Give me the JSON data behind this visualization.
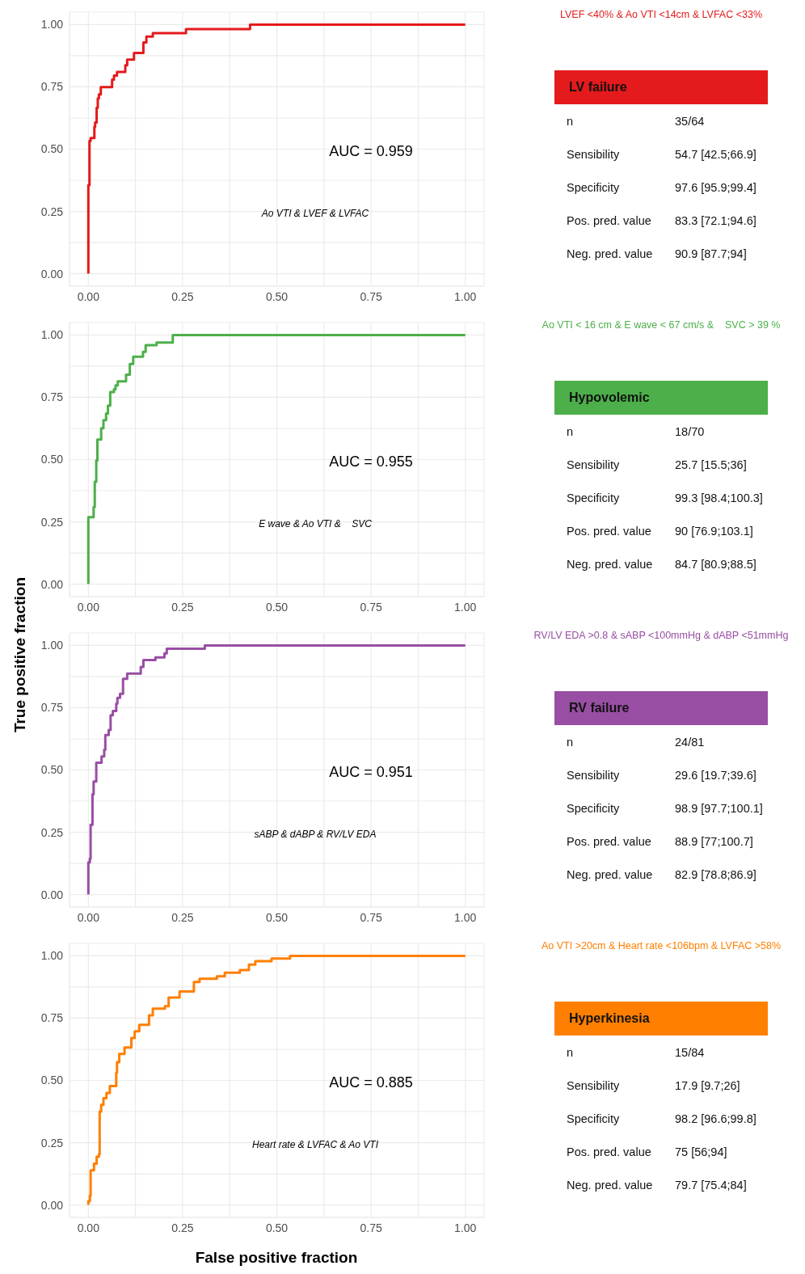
{
  "chart_data": [
    {
      "type": "step",
      "xlim": [
        -0.05,
        1.05
      ],
      "ylim": [
        -0.05,
        1.05
      ],
      "grid": true,
      "xticks": [
        {
          "value": 0,
          "label": "0.00"
        },
        {
          "value": 0.125,
          "label": null
        },
        {
          "value": 0.25,
          "label": "0.25"
        },
        {
          "value": 0.375,
          "label": null
        },
        {
          "value": 0.5,
          "label": "0.50"
        },
        {
          "value": 0.625,
          "label": null
        },
        {
          "value": 0.75,
          "label": "0.75"
        },
        {
          "value": 0.875,
          "label": null
        },
        {
          "value": 1,
          "label": "1.00"
        }
      ],
      "yticks": [
        {
          "value": 0,
          "label": "0.00"
        },
        {
          "value": 0.125,
          "label": null
        },
        {
          "value": 0.25,
          "label": "0.25"
        },
        {
          "value": 0.375,
          "label": null
        },
        {
          "value": 0.5,
          "label": "0.50"
        },
        {
          "value": 0.625,
          "label": null
        },
        {
          "value": 0.75,
          "label": "0.75"
        },
        {
          "value": 0.875,
          "label": null
        },
        {
          "value": 1,
          "label": "1.00"
        }
      ],
      "annotations": [
        "AUC = 0.959",
        "Ao VTI & LVEF & LVFAC"
      ],
      "x": [
        0,
        0,
        0.003,
        0.006,
        0.016,
        0.018,
        0.022,
        0.025,
        0.028,
        0.033,
        0.063,
        0.068,
        0.076,
        0.098,
        0.103,
        0.121,
        0.146,
        0.154,
        0.171,
        0.259,
        0.429,
        1
      ],
      "series": [
        {
          "color": "#e41a1c",
          "values": [
            0,
            0.356,
            0.533,
            0.545,
            0.59,
            0.607,
            0.666,
            0.704,
            0.72,
            0.749,
            0.779,
            0.795,
            0.81,
            0.837,
            0.859,
            0.886,
            0.928,
            0.952,
            0.966,
            0.982,
            1,
            1
          ]
        }
      ]
    },
    {
      "type": "other",
      "title": "LV failure",
      "subtitle": "LVEF <40% & Ao VTI <14cm & LVFAC <33%",
      "color": "#e41a1c",
      "annotations": [
        "n",
        "35/64",
        "Sensibility",
        "54.7 [42.5;66.9]",
        "Specificity",
        "97.6 [95.9;99.4]",
        "Pos. pred. value",
        "83.3 [72.1;94.6]",
        "Neg. pred. value",
        "90.9 [87.7;94]"
      ]
    },
    {
      "type": "step",
      "xlim": [
        -0.05,
        1.05
      ],
      "ylim": [
        -0.05,
        1.05
      ],
      "grid": true,
      "xticks": [
        {
          "value": 0,
          "label": "0.00"
        },
        {
          "value": 0.125,
          "label": null
        },
        {
          "value": 0.25,
          "label": "0.25"
        },
        {
          "value": 0.375,
          "label": null
        },
        {
          "value": 0.5,
          "label": "0.50"
        },
        {
          "value": 0.625,
          "label": null
        },
        {
          "value": 0.75,
          "label": "0.75"
        },
        {
          "value": 0.875,
          "label": null
        },
        {
          "value": 1,
          "label": "1.00"
        }
      ],
      "yticks": [
        {
          "value": 0,
          "label": "0.00"
        },
        {
          "value": 0.125,
          "label": null
        },
        {
          "value": 0.25,
          "label": "0.25"
        },
        {
          "value": 0.375,
          "label": null
        },
        {
          "value": 0.5,
          "label": "0.50"
        },
        {
          "value": 0.625,
          "label": null
        },
        {
          "value": 0.75,
          "label": "0.75"
        },
        {
          "value": 0.875,
          "label": null
        },
        {
          "value": 1,
          "label": "1.00"
        }
      ],
      "annotations": [
        "AUC = 0.955",
        "E wave & Ao VTI &    SVC"
      ],
      "x": [
        0,
        0,
        0.014,
        0.017,
        0.021,
        0.024,
        0.034,
        0.04,
        0.047,
        0.052,
        0.058,
        0.068,
        0.072,
        0.078,
        0.1,
        0.11,
        0.119,
        0.145,
        0.152,
        0.181,
        0.224,
        1
      ],
      "series": [
        {
          "color": "#4daf4a",
          "values": [
            0,
            0.269,
            0.309,
            0.411,
            0.497,
            0.58,
            0.626,
            0.658,
            0.685,
            0.717,
            0.771,
            0.782,
            0.798,
            0.814,
            0.841,
            0.884,
            0.913,
            0.932,
            0.959,
            0.97,
            1,
            1
          ]
        }
      ]
    },
    {
      "type": "other",
      "title": "Hypovolemic",
      "subtitle": "Ao VTI < 16 cm & E wave < 67 cm/s &    SVC > 39 %",
      "color": "#4daf4a",
      "annotations": [
        "n",
        "18/70",
        "Sensibility",
        "25.7 [15.5;36]",
        "Specificity",
        "99.3 [98.4;100.3]",
        "Pos. pred. value",
        "90 [76.9;103.1]",
        "Neg. pred. value",
        "84.7 [80.9;88.5]"
      ]
    },
    {
      "type": "step",
      "xlim": [
        -0.05,
        1.05
      ],
      "ylim": [
        -0.05,
        1.05
      ],
      "grid": true,
      "xticks": [
        {
          "value": 0,
          "label": "0.00"
        },
        {
          "value": 0.125,
          "label": null
        },
        {
          "value": 0.25,
          "label": "0.25"
        },
        {
          "value": 0.375,
          "label": null
        },
        {
          "value": 0.5,
          "label": "0.50"
        },
        {
          "value": 0.625,
          "label": null
        },
        {
          "value": 0.75,
          "label": "0.75"
        },
        {
          "value": 0.875,
          "label": null
        },
        {
          "value": 1,
          "label": "1.00"
        }
      ],
      "yticks": [
        {
          "value": 0,
          "label": "0.00"
        },
        {
          "value": 0.125,
          "label": null
        },
        {
          "value": 0.25,
          "label": "0.25"
        },
        {
          "value": 0.375,
          "label": null
        },
        {
          "value": 0.5,
          "label": "0.50"
        },
        {
          "value": 0.625,
          "label": null
        },
        {
          "value": 0.75,
          "label": "0.75"
        },
        {
          "value": 0.875,
          "label": null
        },
        {
          "value": 1,
          "label": "1.00"
        }
      ],
      "ylabel": "True positive fraction",
      "annotations": [
        "AUC = 0.951",
        "sABP & dABP & RV/LV EDA"
      ],
      "x": [
        0,
        0,
        0.004,
        0.006,
        0.011,
        0.014,
        0.021,
        0.035,
        0.042,
        0.045,
        0.054,
        0.059,
        0.065,
        0.074,
        0.077,
        0.084,
        0.092,
        0.103,
        0.139,
        0.146,
        0.178,
        0.202,
        0.208,
        0.309,
        1
      ],
      "series": [
        {
          "color": "#984ea3",
          "values": [
            0,
            0.129,
            0.145,
            0.28,
            0.403,
            0.454,
            0.529,
            0.554,
            0.581,
            0.64,
            0.661,
            0.72,
            0.737,
            0.766,
            0.79,
            0.806,
            0.866,
            0.887,
            0.914,
            0.941,
            0.952,
            0.968,
            0.987,
            1,
            1
          ]
        }
      ]
    },
    {
      "type": "other",
      "title": "RV failure",
      "subtitle": "RV/LV EDA >0.8 & sABP <100mmHg & dABP <51mmHg",
      "color": "#984ea3",
      "annotations": [
        "n",
        "24/81",
        "Sensibility",
        "29.6 [19.7;39.6]",
        "Specificity",
        "98.9 [97.7;100.1]",
        "Pos. pred. value",
        "88.9 [77;100.7]",
        "Neg. pred. value",
        "82.9 [78.8;86.9]"
      ]
    },
    {
      "type": "step",
      "xlabel": "False positive fraction",
      "xlim": [
        -0.05,
        1.05
      ],
      "ylim": [
        -0.05,
        1.05
      ],
      "grid": true,
      "xticks": [
        {
          "value": 0,
          "label": "0.00"
        },
        {
          "value": 0.125,
          "label": null
        },
        {
          "value": 0.25,
          "label": "0.25"
        },
        {
          "value": 0.375,
          "label": null
        },
        {
          "value": 0.5,
          "label": "0.50"
        },
        {
          "value": 0.625,
          "label": null
        },
        {
          "value": 0.75,
          "label": "0.75"
        },
        {
          "value": 0.875,
          "label": null
        },
        {
          "value": 1,
          "label": "1.00"
        }
      ],
      "yticks": [
        {
          "value": 0,
          "label": "0.00"
        },
        {
          "value": 0.125,
          "label": null
        },
        {
          "value": 0.25,
          "label": "0.25"
        },
        {
          "value": 0.375,
          "label": null
        },
        {
          "value": 0.5,
          "label": "0.50"
        },
        {
          "value": 0.625,
          "label": null
        },
        {
          "value": 0.75,
          "label": "0.75"
        },
        {
          "value": 0.875,
          "label": null
        },
        {
          "value": 1,
          "label": "1.00"
        }
      ],
      "annotations": [
        "AUC = 0.885",
        "Heart rate & LVFAC & Ao VTI"
      ],
      "x": [
        0,
        0,
        0.004,
        0.006,
        0.015,
        0.022,
        0.028,
        0.03,
        0.034,
        0.04,
        0.048,
        0.057,
        0.074,
        0.076,
        0.082,
        0.096,
        0.114,
        0.123,
        0.135,
        0.161,
        0.171,
        0.203,
        0.213,
        0.242,
        0.28,
        0.295,
        0.341,
        0.362,
        0.402,
        0.426,
        0.443,
        0.486,
        0.535,
        1
      ],
      "series": [
        {
          "color": "#ff7f00",
          "values": [
            0,
            0.016,
            0.038,
            0.139,
            0.166,
            0.193,
            0.204,
            0.375,
            0.402,
            0.429,
            0.45,
            0.477,
            0.531,
            0.573,
            0.606,
            0.632,
            0.67,
            0.697,
            0.723,
            0.761,
            0.788,
            0.798,
            0.833,
            0.857,
            0.895,
            0.908,
            0.918,
            0.932,
            0.943,
            0.965,
            0.979,
            0.989,
            1,
            1
          ]
        }
      ]
    },
    {
      "type": "other",
      "title": "Hyperkinesia",
      "subtitle": "Ao VTI >20cm & Heart rate <106bpm & LVFAC >58%",
      "color": "#ff7f00",
      "annotations": [
        "n",
        "15/84",
        "Sensibility",
        "17.9 [9.7;26]",
        "Specificity",
        "98.2 [96.6;99.8]",
        "Pos. pred. value",
        "75 [56;94]",
        "Neg. pred. value",
        "79.7 [75.4;84]"
      ]
    }
  ]
}
